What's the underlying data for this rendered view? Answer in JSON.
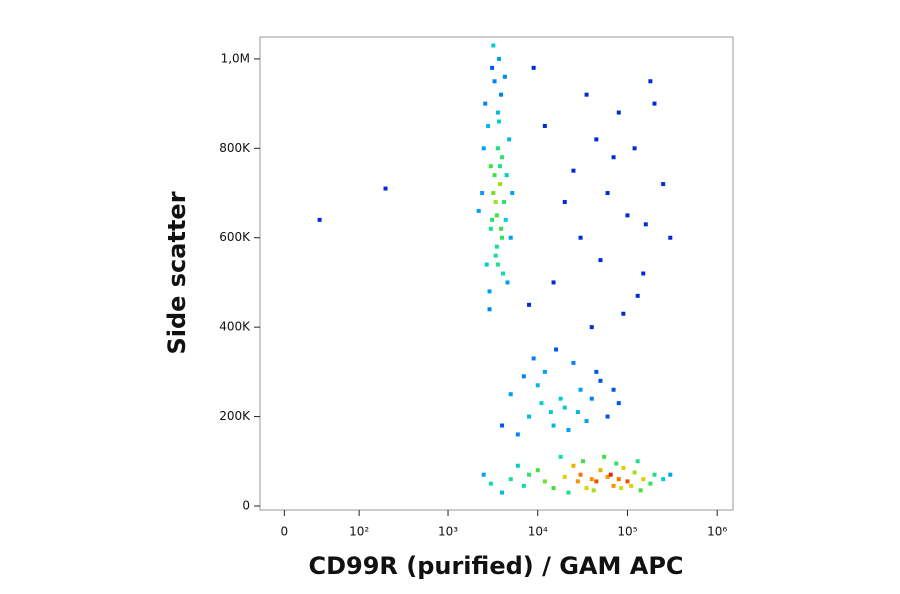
{
  "chart_data": {
    "type": "scatter",
    "xlabel": "CD99R (purified) / GAM APC",
    "ylabel": "Side scatter",
    "xscale": "biexponential",
    "xlim": [
      -20,
      1500000
    ],
    "ylim": [
      -9000,
      1049000
    ],
    "xticks": [
      0,
      {
        "value": 100,
        "label": "10²"
      },
      {
        "value": 1000,
        "label": "10³"
      },
      {
        "value": 10000,
        "label": "10⁴"
      },
      {
        "value": 100000,
        "label": "10⁵"
      },
      {
        "value": 1000000,
        "label": "10⁶"
      }
    ],
    "yticks": [
      0,
      {
        "value": 200000,
        "label": "200K"
      },
      {
        "value": 400000,
        "label": "400K"
      },
      {
        "value": 600000,
        "label": "600K"
      },
      {
        "value": 800000,
        "label": "800K"
      },
      {
        "value": 1000000,
        "label": "1,0M"
      }
    ],
    "colormap": [
      "#0000c8",
      "#0090ff",
      "#00e0c0",
      "#40e040",
      "#e0e000",
      "#ff8000",
      "#e00000"
    ],
    "x": [
      3200,
      3500,
      3800,
      4000,
      3000,
      3600,
      4200,
      2800,
      3400,
      3900,
      4500,
      2600,
      3300,
      3700,
      4100,
      2900,
      3500,
      4800,
      2400,
      3100,
      3600,
      4300,
      5000,
      2700,
      3200,
      3800,
      3400,
      4600,
      2500,
      3000,
      3900,
      5200,
      2200,
      3300,
      3600,
      4400,
      3100,
      3700,
      2900,
      4000,
      5000,
      8000,
      12000,
      20000,
      30000,
      15000,
      25000,
      40000,
      60000,
      6000,
      10000,
      18000,
      35000,
      50000,
      9000,
      14000,
      22000,
      45000,
      80000,
      7000,
      28000,
      16000,
      11000,
      4000,
      70000,
      3000,
      5000,
      8000,
      12000,
      20000,
      30000,
      40000,
      60000,
      80000,
      100000,
      150000,
      200000,
      25000,
      35000,
      50000,
      70000,
      90000,
      120000,
      15000,
      10000,
      45000,
      65000,
      110000,
      180000,
      250000,
      2500,
      4000,
      6000,
      22000,
      32000,
      55000,
      75000,
      130000,
      300000,
      18000,
      28000,
      42000,
      85000,
      140000,
      7000,
      15000,
      30000,
      60000,
      120000,
      200000,
      8000,
      25000,
      50000,
      100000,
      180000,
      12000,
      40000,
      80000,
      150000,
      300000,
      20000,
      70000,
      250000,
      9000,
      35000,
      90000,
      160000,
      45000,
      130000,
      31,
      200
    ],
    "y": [
      700000,
      650000,
      720000,
      600000,
      760000,
      800000,
      680000,
      850000,
      560000,
      620000,
      740000,
      900000,
      950000,
      1000000,
      520000,
      480000,
      580000,
      820000,
      700000,
      640000,
      880000,
      960000,
      600000,
      540000,
      1030000,
      760000,
      680000,
      500000,
      800000,
      620000,
      920000,
      700000,
      660000,
      740000,
      540000,
      640000,
      980000,
      860000,
      440000,
      780000,
      250000,
      200000,
      300000,
      220000,
      260000,
      180000,
      320000,
      240000,
      200000,
      160000,
      270000,
      240000,
      190000,
      280000,
      330000,
      210000,
      170000,
      300000,
      230000,
      290000,
      210000,
      350000,
      230000,
      180000,
      260000,
      50000,
      60000,
      70000,
      55000,
      65000,
      70000,
      60000,
      65000,
      60000,
      55000,
      60000,
      70000,
      90000,
      40000,
      80000,
      45000,
      85000,
      75000,
      40000,
      80000,
      55000,
      70000,
      45000,
      50000,
      60000,
      70000,
      30000,
      90000,
      30000,
      100000,
      110000,
      95000,
      100000,
      70000,
      110000,
      55000,
      35000,
      40000,
      35000,
      45000,
      500000,
      600000,
      700000,
      800000,
      900000,
      450000,
      750000,
      550000,
      650000,
      950000,
      850000,
      400000,
      880000,
      520000,
      600000,
      680000,
      780000,
      720000,
      980000,
      920000,
      430000,
      630000,
      820000,
      470000,
      640000,
      710000
    ],
    "density": [
      0.55,
      0.5,
      0.6,
      0.45,
      0.5,
      0.4,
      0.45,
      0.25,
      0.4,
      0.5,
      0.3,
      0.15,
      0.15,
      0.2,
      0.35,
      0.2,
      0.4,
      0.25,
      0.2,
      0.45,
      0.25,
      0.15,
      0.2,
      0.3,
      0.3,
      0.4,
      0.6,
      0.2,
      0.2,
      0.4,
      0.15,
      0.2,
      0.2,
      0.5,
      0.4,
      0.3,
      0.1,
      0.3,
      0.15,
      0.45,
      0.2,
      0.25,
      0.2,
      0.3,
      0.2,
      0.25,
      0.15,
      0.15,
      0.1,
      0.15,
      0.25,
      0.3,
      0.2,
      0.1,
      0.15,
      0.3,
      0.2,
      0.1,
      0.1,
      0.15,
      0.25,
      0.1,
      0.3,
      0.1,
      0.1,
      0.35,
      0.4,
      0.45,
      0.55,
      0.7,
      0.85,
      0.8,
      0.8,
      0.85,
      0.9,
      0.7,
      0.4,
      0.75,
      0.7,
      0.75,
      0.8,
      0.7,
      0.6,
      0.5,
      0.5,
      0.9,
      0.95,
      0.7,
      0.45,
      0.3,
      0.2,
      0.25,
      0.3,
      0.4,
      0.5,
      0.5,
      0.45,
      0.4,
      0.2,
      0.35,
      0.8,
      0.6,
      0.65,
      0.5,
      0.35,
      0.05,
      0.05,
      0.05,
      0.05,
      0.05,
      0.05,
      0.05,
      0.05,
      0.05,
      0.05,
      0.05,
      0.05,
      0.05,
      0.05,
      0.05,
      0.05,
      0.05,
      0.05,
      0.05,
      0.05,
      0.05,
      0.05,
      0.05,
      0.05,
      0.05,
      0.05
    ]
  }
}
